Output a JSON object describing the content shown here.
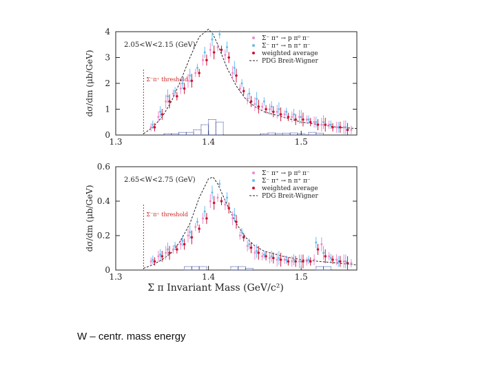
{
  "caption": "W – centr. mass energy",
  "colors": {
    "series_ppi": "#ee88cc",
    "series_npi": "#66bbee",
    "series_avg": "#cc1133",
    "fit": "#222222",
    "threshold": "#cc2222",
    "hist": "#334499"
  },
  "chart_data": [
    {
      "type": "scatter",
      "title": "2.05<W<2.15 (GeV)",
      "ylabel": "dσ/dm (μb/GeV)",
      "xlabel": "",
      "xlim": [
        1.3,
        1.56
      ],
      "ylim": [
        0,
        4
      ],
      "x_ticks": [
        "1.3",
        "1.4",
        "1.5"
      ],
      "y_ticks": [
        "0",
        "1",
        "2",
        "3",
        "4"
      ],
      "threshold_label": "Σ⁻π⁺ threshold",
      "threshold_x": 1.33,
      "legend": [
        "Σ⁻ π⁺ → p π⁰ π⁻",
        "Σ⁻ π⁺ → n π⁺ π⁻",
        "weighted average",
        "PDG Breit-Wigner"
      ],
      "legend_position": "top-right",
      "series": [
        {
          "name": "Σ⁻ π⁺ → p π⁰ π⁻",
          "x": [
            1.338,
            1.346,
            1.354,
            1.362,
            1.37,
            1.378,
            1.386,
            1.394,
            1.402,
            1.41,
            1.418,
            1.426,
            1.434,
            1.442,
            1.45,
            1.458,
            1.466,
            1.474,
            1.482,
            1.49,
            1.498,
            1.506,
            1.514,
            1.522,
            1.53,
            1.538,
            1.546,
            1.554
          ],
          "y": [
            0.3,
            0.7,
            1.3,
            1.6,
            1.8,
            2.1,
            2.4,
            2.9,
            3.3,
            3.4,
            3.1,
            2.4,
            1.8,
            1.4,
            1.2,
            1.1,
            1.0,
            0.9,
            0.8,
            0.7,
            0.7,
            0.6,
            0.5,
            0.4,
            0.4,
            0.3,
            0.3,
            0.2
          ]
        },
        {
          "name": "Σ⁻ π⁺ → n π⁺ π⁻",
          "x": [
            1.34,
            1.348,
            1.356,
            1.364,
            1.372,
            1.38,
            1.388,
            1.396,
            1.404,
            1.412,
            1.42,
            1.428,
            1.436,
            1.444,
            1.452,
            1.46,
            1.468,
            1.476,
            1.484,
            1.492,
            1.5,
            1.508,
            1.516,
            1.524,
            1.532,
            1.54,
            1.548
          ],
          "y": [
            0.4,
            0.9,
            1.5,
            1.7,
            2.0,
            2.3,
            2.6,
            3.2,
            3.7,
            3.9,
            3.4,
            2.6,
            2.0,
            1.6,
            1.4,
            1.3,
            1.1,
            1.0,
            0.9,
            0.8,
            0.7,
            0.6,
            0.5,
            0.5,
            0.4,
            0.3,
            0.3
          ]
        },
        {
          "name": "weighted average",
          "x": [
            1.342,
            1.35,
            1.358,
            1.366,
            1.374,
            1.382,
            1.39,
            1.398,
            1.406,
            1.414,
            1.422,
            1.43,
            1.438,
            1.446,
            1.454,
            1.462,
            1.47,
            1.478,
            1.486,
            1.494,
            1.502,
            1.51,
            1.518,
            1.526,
            1.534,
            1.542,
            1.55
          ],
          "y": [
            0.3,
            0.8,
            1.3,
            1.5,
            1.8,
            2.1,
            2.4,
            2.9,
            3.2,
            3.3,
            3.0,
            2.3,
            1.7,
            1.3,
            1.1,
            1.0,
            0.9,
            0.8,
            0.7,
            0.6,
            0.6,
            0.5,
            0.4,
            0.4,
            0.3,
            0.3,
            0.2
          ]
        }
      ],
      "fit": {
        "name": "PDG Breit-Wigner",
        "x": [
          1.33,
          1.34,
          1.35,
          1.36,
          1.37,
          1.38,
          1.39,
          1.4,
          1.405,
          1.41,
          1.42,
          1.43,
          1.44,
          1.45,
          1.46,
          1.48,
          1.5,
          1.52,
          1.54,
          1.56
        ],
        "y": [
          0.05,
          0.3,
          0.7,
          1.3,
          2.1,
          3.0,
          3.8,
          4.1,
          3.9,
          3.5,
          2.6,
          1.9,
          1.4,
          1.1,
          0.9,
          0.7,
          0.5,
          0.4,
          0.3,
          0.25
        ]
      },
      "histogram": {
        "x": [
          1.356,
          1.364,
          1.372,
          1.38,
          1.388,
          1.396,
          1.404,
          1.412,
          1.46,
          1.468,
          1.476,
          1.484,
          1.492,
          1.5,
          1.512,
          1.52
        ],
        "y": [
          0.05,
          0.05,
          0.1,
          0.1,
          0.2,
          0.4,
          0.6,
          0.5,
          0.05,
          0.08,
          0.06,
          0.07,
          0.08,
          0.05,
          0.1,
          0.07
        ]
      }
    },
    {
      "type": "scatter",
      "title": "2.65<W<2.75 (GeV)",
      "ylabel": "dσ/dm (μb/GeV)",
      "xlabel": "Σ π Invariant Mass (GeV/c²)",
      "xlim": [
        1.3,
        1.56
      ],
      "ylim": [
        0,
        0.6
      ],
      "x_ticks": [
        "1.3",
        "1.4",
        "1.5"
      ],
      "y_ticks": [
        "0",
        "0.2",
        "0.4",
        "0.6"
      ],
      "threshold_label": "Σ⁻π⁺ threshold",
      "threshold_x": 1.33,
      "legend": [
        "Σ⁻ π⁺ → p π⁰ π⁻",
        "Σ⁻ π⁺ → n π⁺ π⁻",
        "weighted average",
        "PDG Breit-Wigner"
      ],
      "legend_position": "top-right",
      "series": [
        {
          "name": "Σ⁻ π⁺ → p π⁰ π⁻",
          "x": [
            1.338,
            1.346,
            1.354,
            1.362,
            1.37,
            1.378,
            1.386,
            1.394,
            1.402,
            1.41,
            1.418,
            1.426,
            1.434,
            1.442,
            1.45,
            1.458,
            1.466,
            1.474,
            1.482,
            1.49,
            1.498,
            1.506,
            1.514,
            1.522,
            1.53,
            1.538,
            1.546,
            1.554
          ],
          "y": [
            0.05,
            0.08,
            0.1,
            0.12,
            0.15,
            0.2,
            0.25,
            0.3,
            0.4,
            0.42,
            0.38,
            0.3,
            0.2,
            0.14,
            0.1,
            0.08,
            0.07,
            0.06,
            0.06,
            0.05,
            0.05,
            0.05,
            0.06,
            0.15,
            0.08,
            0.06,
            0.05,
            0.04
          ]
        },
        {
          "name": "Σ⁻ π⁺ → n π⁺ π⁻",
          "x": [
            1.34,
            1.348,
            1.356,
            1.364,
            1.372,
            1.38,
            1.388,
            1.396,
            1.404,
            1.412,
            1.42,
            1.428,
            1.436,
            1.444,
            1.452,
            1.46,
            1.468,
            1.476,
            1.484,
            1.492,
            1.5,
            1.508,
            1.516,
            1.524,
            1.532,
            1.54,
            1.548
          ],
          "y": [
            0.06,
            0.09,
            0.12,
            0.14,
            0.17,
            0.22,
            0.28,
            0.34,
            0.45,
            0.5,
            0.42,
            0.32,
            0.22,
            0.15,
            0.11,
            0.09,
            0.08,
            0.07,
            0.06,
            0.06,
            0.05,
            0.06,
            0.16,
            0.1,
            0.07,
            0.05,
            0.05
          ]
        },
        {
          "name": "weighted average",
          "x": [
            1.342,
            1.35,
            1.358,
            1.366,
            1.374,
            1.382,
            1.39,
            1.398,
            1.406,
            1.414,
            1.422,
            1.43,
            1.438,
            1.446,
            1.454,
            1.462,
            1.47,
            1.478,
            1.486,
            1.494,
            1.502,
            1.51,
            1.518,
            1.526,
            1.534,
            1.542,
            1.55
          ],
          "y": [
            0.05,
            0.08,
            0.1,
            0.12,
            0.15,
            0.19,
            0.24,
            0.3,
            0.39,
            0.4,
            0.36,
            0.28,
            0.19,
            0.13,
            0.1,
            0.08,
            0.07,
            0.06,
            0.05,
            0.05,
            0.05,
            0.05,
            0.12,
            0.08,
            0.06,
            0.05,
            0.04
          ]
        }
      ],
      "fit": {
        "name": "PDG Breit-Wigner",
        "x": [
          1.33,
          1.34,
          1.35,
          1.36,
          1.37,
          1.38,
          1.39,
          1.4,
          1.405,
          1.41,
          1.42,
          1.43,
          1.44,
          1.45,
          1.46,
          1.48,
          1.5,
          1.52,
          1.54,
          1.56
        ],
        "y": [
          0.01,
          0.03,
          0.06,
          0.1,
          0.17,
          0.27,
          0.42,
          0.53,
          0.54,
          0.5,
          0.38,
          0.27,
          0.19,
          0.14,
          0.11,
          0.08,
          0.06,
          0.05,
          0.04,
          0.03
        ]
      },
      "histogram": {
        "x": [
          1.378,
          1.386,
          1.394,
          1.428,
          1.436,
          1.444,
          1.52,
          1.528
        ],
        "y": [
          0.02,
          0.02,
          0.02,
          0.02,
          0.02,
          0.01,
          0.02,
          0.02
        ]
      }
    }
  ]
}
